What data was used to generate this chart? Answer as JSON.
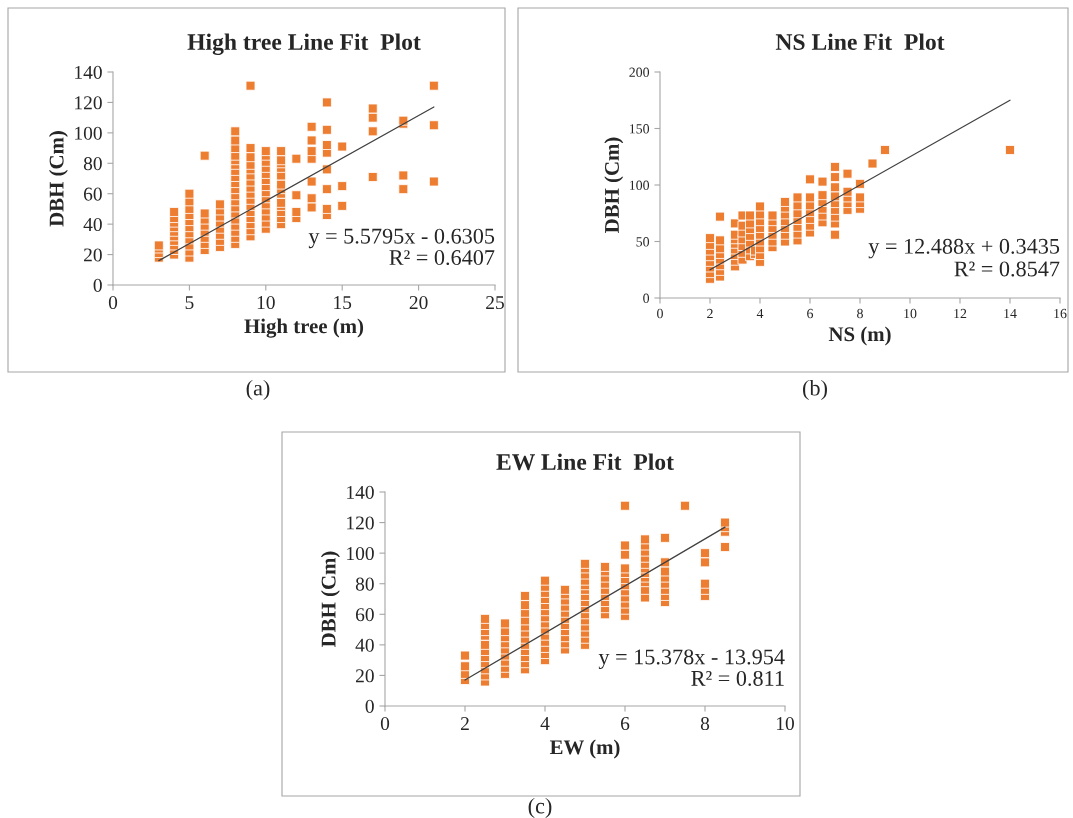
{
  "chart_data": [
    {
      "type": "scatter",
      "title": "High tree Line Fit  Plot",
      "xlabel": "High tree (m)",
      "ylabel": "DBH (Cm)",
      "xlim": [
        0,
        25
      ],
      "xticks": [
        0,
        5,
        10,
        15,
        20,
        25
      ],
      "ylim": [
        0,
        140
      ],
      "yticks": [
        0,
        20,
        40,
        60,
        80,
        100,
        120,
        140
      ],
      "grid": false,
      "annotations": [
        "y = 5.5795x - 0.6305",
        "R² = 0.6407",
        "(a)"
      ],
      "series": [
        {
          "marker": "square",
          "color": "#ed7d31",
          "x": [
            3,
            3,
            3,
            3,
            4,
            4,
            4,
            4,
            4,
            4,
            4,
            4,
            4,
            4,
            5,
            5,
            5,
            5,
            5,
            5,
            5,
            5,
            5,
            5,
            5,
            6,
            6,
            6,
            6,
            6,
            6,
            6,
            6,
            7,
            7,
            7,
            7,
            7,
            7,
            7,
            7,
            8,
            8,
            8,
            8,
            8,
            8,
            8,
            8,
            8,
            8,
            8,
            8,
            8,
            8,
            8,
            8,
            8,
            8,
            8,
            9,
            9,
            9,
            9,
            9,
            9,
            9,
            9,
            9,
            9,
            9,
            9,
            9,
            9,
            9,
            9,
            10,
            10,
            10,
            10,
            10,
            10,
            10,
            10,
            10,
            10,
            10,
            10,
            10,
            10,
            11,
            11,
            11,
            11,
            11,
            11,
            11,
            11,
            11,
            11,
            11,
            11,
            11,
            12,
            12,
            12,
            12,
            13,
            13,
            13,
            13,
            13,
            13,
            13,
            14,
            14,
            14,
            14,
            14,
            14,
            14,
            14,
            15,
            15,
            15,
            17,
            17,
            17,
            17,
            19,
            19,
            19,
            19,
            21,
            21,
            21
          ],
          "values": [
            18,
            21,
            24,
            26,
            20,
            23,
            26,
            29,
            32,
            35,
            38,
            41,
            44,
            48,
            18,
            22,
            26,
            30,
            34,
            38,
            42,
            46,
            50,
            55,
            60,
            23,
            27,
            31,
            35,
            39,
            43,
            47,
            85,
            25,
            29,
            33,
            37,
            41,
            45,
            49,
            53,
            27,
            31,
            35,
            39,
            43,
            47,
            51,
            55,
            59,
            63,
            67,
            71,
            75,
            79,
            82,
            85,
            90,
            95,
            101,
            32,
            36,
            40,
            44,
            48,
            52,
            56,
            60,
            64,
            68,
            72,
            76,
            79,
            84,
            90,
            131,
            37,
            41,
            45,
            49,
            53,
            57,
            61,
            65,
            69,
            73,
            77,
            81,
            85,
            88,
            40,
            44,
            48,
            52,
            54,
            60,
            63,
            66,
            72,
            77,
            80,
            82,
            88,
            44,
            48,
            59,
            83,
            51,
            57,
            68,
            83,
            88,
            95,
            104,
            46,
            50,
            63,
            76,
            87,
            92,
            102,
            120,
            52,
            65,
            91,
            71,
            101,
            110,
            116,
            63,
            72,
            106,
            108,
            68,
            105,
            131
          ]
        },
        {
          "type": "line",
          "color": "#404040",
          "x": [
            3,
            21
          ],
          "values": [
            16,
            117
          ]
        }
      ]
    },
    {
      "type": "scatter",
      "title": "NS Line Fit  Plot",
      "xlabel": "NS (m)",
      "ylabel": "DBH (Cm)",
      "xlim": [
        0,
        16
      ],
      "xticks": [
        0,
        2,
        4,
        6,
        8,
        10,
        12,
        14,
        16
      ],
      "ylim": [
        0,
        200
      ],
      "yticks": [
        0,
        50,
        100,
        150,
        200
      ],
      "grid": false,
      "annotations": [
        "y = 12.488x + 0.3435",
        "R² = 0.8547",
        "(b)"
      ],
      "series": [
        {
          "marker": "square",
          "color": "#ed7d31",
          "x": [
            2,
            2,
            2,
            2,
            2,
            2,
            2,
            2,
            2.4,
            2.4,
            2.4,
            2.4,
            2.4,
            2.4,
            2.4,
            2.4,
            3,
            3,
            3,
            3,
            3,
            3,
            3,
            3,
            3.3,
            3.3,
            3.3,
            3.3,
            3.3,
            3.3,
            3.3,
            3.6,
            3.6,
            3.6,
            3.6,
            3.6,
            3.6,
            3.6,
            3.8,
            3.8,
            4,
            4,
            4,
            4,
            4,
            4,
            4,
            4,
            4,
            4.5,
            4.5,
            4.5,
            4.5,
            4.5,
            4.5,
            5,
            5,
            5,
            5,
            5,
            5,
            5,
            5.5,
            5.5,
            5.5,
            5.5,
            5.5,
            5.5,
            5.5,
            6,
            6,
            6,
            6,
            6,
            6,
            6,
            6.5,
            6.5,
            6.5,
            6.5,
            6.5,
            6.5,
            7,
            7,
            7,
            7,
            7,
            7,
            7,
            7,
            7,
            7.5,
            7.5,
            7.5,
            7.5,
            7.5,
            8,
            8,
            8,
            8,
            8.5,
            9,
            14
          ],
          "values": [
            17,
            22,
            27,
            32,
            37,
            42,
            47,
            53,
            19,
            24,
            29,
            34,
            39,
            44,
            51,
            72,
            28,
            33,
            38,
            43,
            48,
            52,
            56,
            66,
            34,
            40,
            46,
            52,
            58,
            64,
            73,
            37,
            43,
            49,
            55,
            61,
            66,
            73,
            39,
            42,
            32,
            38,
            44,
            50,
            56,
            62,
            68,
            74,
            81,
            45,
            50,
            56,
            62,
            68,
            73,
            50,
            56,
            62,
            68,
            74,
            80,
            85,
            51,
            57,
            63,
            69,
            75,
            82,
            89,
            58,
            64,
            70,
            76,
            82,
            89,
            105,
            67,
            73,
            79,
            85,
            91,
            103,
            56,
            66,
            72,
            78,
            84,
            90,
            98,
            107,
            116,
            78,
            84,
            89,
            94,
            110,
            79,
            84,
            89,
            101,
            119,
            131,
            131
          ]
        },
        {
          "type": "line",
          "color": "#404040",
          "x": [
            2,
            14
          ],
          "values": [
            25,
            175
          ]
        }
      ]
    },
    {
      "type": "scatter",
      "title": "EW Line Fit  Plot",
      "xlabel": "EW (m)",
      "ylabel": "DBH (Cm)",
      "xlim": [
        0,
        10
      ],
      "xticks": [
        0,
        2,
        4,
        6,
        8,
        10
      ],
      "ylim": [
        0,
        140
      ],
      "yticks": [
        0,
        20,
        40,
        60,
        80,
        100,
        120,
        140
      ],
      "grid": false,
      "annotations": [
        "y = 15.378x - 13.954",
        "R² = 0.811",
        "(c)"
      ],
      "series": [
        {
          "marker": "square",
          "color": "#ed7d31",
          "x": [
            2,
            2,
            2,
            2,
            2.5,
            2.5,
            2.5,
            2.5,
            2.5,
            2.5,
            2.5,
            2.5,
            2.5,
            2.5,
            2.5,
            3,
            3,
            3,
            3,
            3,
            3,
            3,
            3,
            3,
            3.5,
            3.5,
            3.5,
            3.5,
            3.5,
            3.5,
            3.5,
            3.5,
            3.5,
            3.5,
            3.5,
            3.5,
            4,
            4,
            4,
            4,
            4,
            4,
            4,
            4,
            4,
            4,
            4,
            4,
            4,
            4,
            4.5,
            4.5,
            4.5,
            4.5,
            4.5,
            4.5,
            4.5,
            4.5,
            4.5,
            4.5,
            4.5,
            5,
            5,
            5,
            5,
            5,
            5,
            5,
            5,
            5,
            5,
            5,
            5,
            5,
            5,
            5,
            5.5,
            5.5,
            5.5,
            5.5,
            5.5,
            5.5,
            5.5,
            5.5,
            5.5,
            6,
            6,
            6,
            6,
            6,
            6,
            6,
            6,
            6,
            6,
            6,
            6,
            6.5,
            6.5,
            6.5,
            6.5,
            6.5,
            6.5,
            6.5,
            6.5,
            6.5,
            6.5,
            6.5,
            7,
            7,
            7,
            7,
            7,
            7,
            7,
            7,
            7.5,
            8,
            8,
            8,
            8,
            8,
            8.5,
            8.5,
            8.5,
            8.5
          ],
          "values": [
            17,
            21,
            26,
            33,
            16,
            20,
            24,
            28,
            32,
            36,
            40,
            46,
            49,
            53,
            57,
            21,
            25,
            29,
            33,
            37,
            41,
            45,
            49,
            54,
            24,
            28,
            32,
            36,
            40,
            44,
            48,
            52,
            56,
            61,
            66,
            72,
            30,
            34,
            38,
            42,
            46,
            50,
            54,
            58,
            62,
            66,
            70,
            74,
            78,
            82,
            37,
            41,
            45,
            49,
            53,
            57,
            61,
            65,
            69,
            73,
            76,
            40,
            44,
            48,
            52,
            56,
            60,
            64,
            68,
            72,
            76,
            79,
            82,
            86,
            90,
            93,
            60,
            64,
            68,
            72,
            76,
            80,
            84,
            88,
            91,
            59,
            63,
            67,
            71,
            75,
            79,
            83,
            87,
            90,
            99,
            105,
            131,
            71,
            76,
            81,
            84,
            87,
            90,
            93,
            97,
            101,
            105,
            109,
            68,
            72,
            76,
            80,
            84,
            88,
            94,
            110,
            131,
            72,
            76,
            80,
            94,
            100,
            104,
            114,
            117,
            120
          ]
        },
        {
          "type": "line",
          "color": "#404040",
          "x": [
            2,
            8.5
          ],
          "values": [
            17,
            117
          ]
        }
      ]
    }
  ]
}
